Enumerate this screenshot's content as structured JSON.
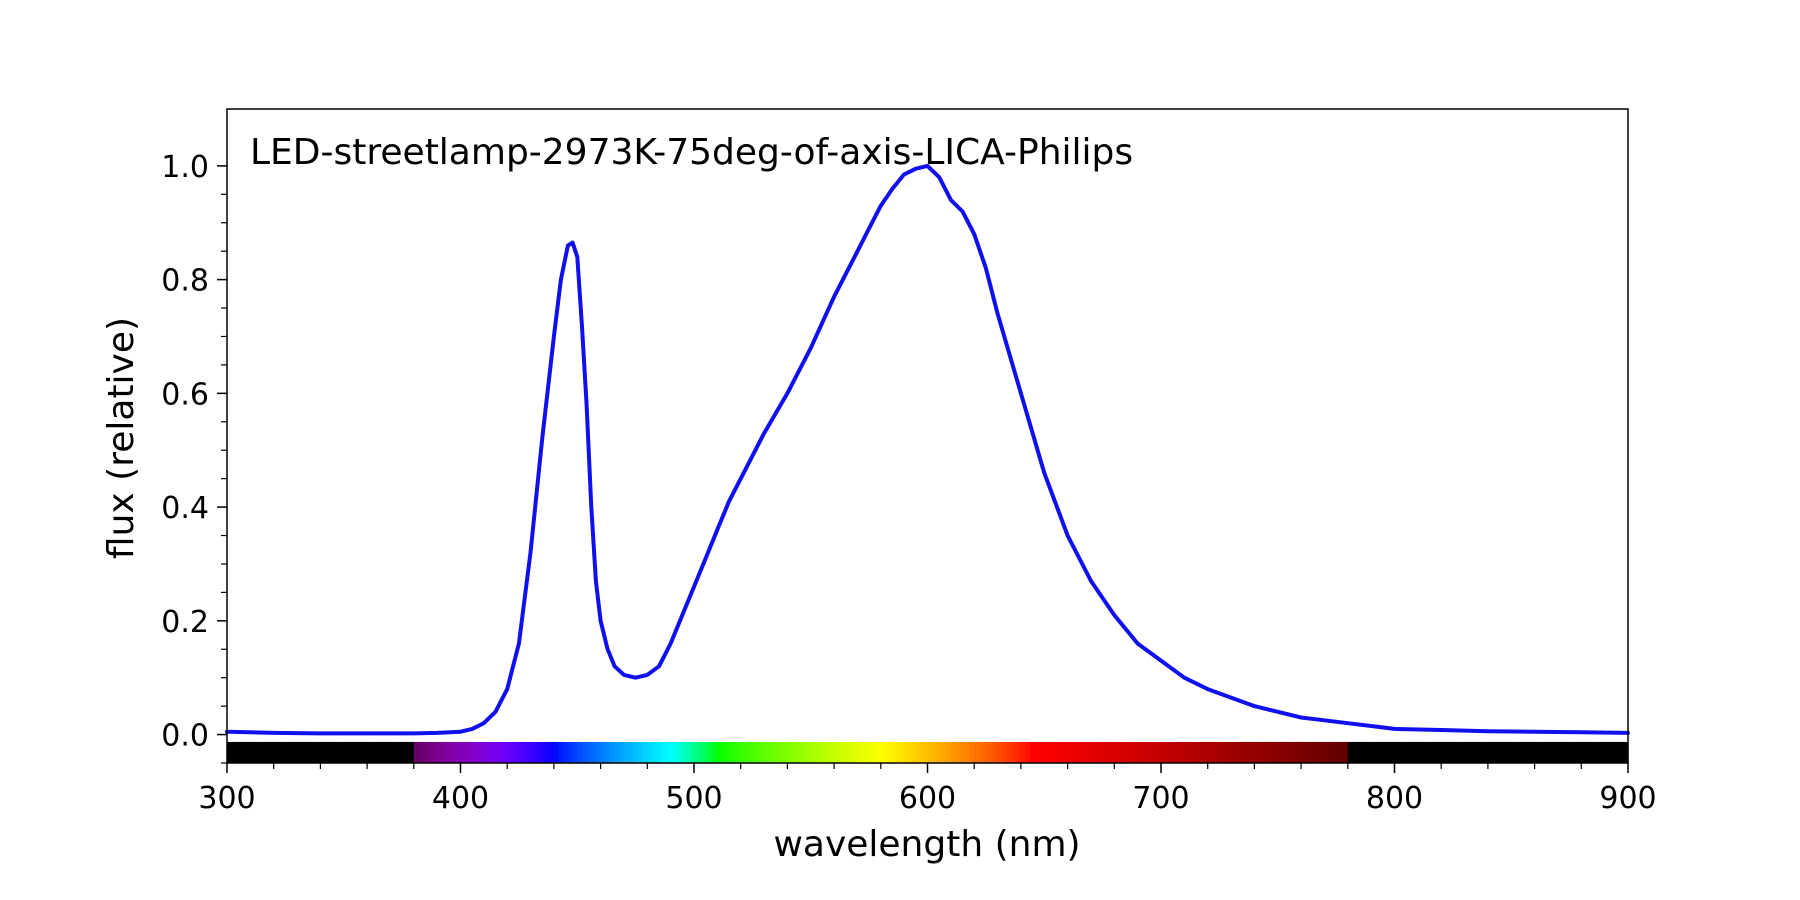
{
  "chart_data": {
    "type": "line",
    "title": "LED-streetlamp-2973K-75deg-of-axis-LICA-Philips",
    "xlabel": "wavelength (nm)",
    "ylabel": "flux (relative)",
    "xlim": [
      300,
      900
    ],
    "ylim": [
      -0.05,
      1.1
    ],
    "x_ticks": [
      300,
      400,
      500,
      600,
      700,
      800,
      900
    ],
    "x_tick_labels": [
      "300",
      "400",
      "500",
      "600",
      "700",
      "800",
      "900"
    ],
    "y_ticks": [
      0.0,
      0.2,
      0.4,
      0.6,
      0.8,
      1.0
    ],
    "y_tick_labels": [
      "0.0",
      "0.2",
      "0.4",
      "0.6",
      "0.8",
      "1.0"
    ],
    "grid": false,
    "legend": "none",
    "spectrum_bar": true,
    "series": [
      {
        "color": "#1010ee",
        "x": [
          300,
          320,
          340,
          360,
          380,
          390,
          400,
          405,
          410,
          415,
          420,
          425,
          430,
          435,
          440,
          443,
          446,
          448,
          450,
          452,
          454,
          456,
          458,
          460,
          463,
          466,
          470,
          475,
          480,
          485,
          490,
          495,
          500,
          505,
          510,
          515,
          520,
          525,
          530,
          540,
          550,
          560,
          570,
          575,
          580,
          585,
          590,
          595,
          600,
          605,
          610,
          615,
          620,
          625,
          630,
          640,
          650,
          660,
          670,
          680,
          690,
          700,
          710,
          720,
          730,
          740,
          750,
          760,
          770,
          780,
          790,
          800,
          820,
          840,
          860,
          880,
          900
        ],
        "y": [
          0.005,
          0.003,
          0.002,
          0.002,
          0.002,
          0.003,
          0.005,
          0.01,
          0.02,
          0.04,
          0.08,
          0.16,
          0.32,
          0.52,
          0.7,
          0.8,
          0.86,
          0.865,
          0.84,
          0.72,
          0.58,
          0.4,
          0.27,
          0.2,
          0.15,
          0.12,
          0.105,
          0.1,
          0.105,
          0.12,
          0.16,
          0.21,
          0.26,
          0.31,
          0.36,
          0.41,
          0.45,
          0.49,
          0.53,
          0.6,
          0.68,
          0.77,
          0.85,
          0.89,
          0.93,
          0.96,
          0.985,
          0.995,
          1.0,
          0.98,
          0.94,
          0.92,
          0.88,
          0.82,
          0.74,
          0.6,
          0.46,
          0.35,
          0.27,
          0.21,
          0.16,
          0.13,
          0.1,
          0.08,
          0.065,
          0.05,
          0.04,
          0.03,
          0.025,
          0.02,
          0.015,
          0.01,
          0.008,
          0.006,
          0.005,
          0.004,
          0.003
        ]
      }
    ]
  }
}
